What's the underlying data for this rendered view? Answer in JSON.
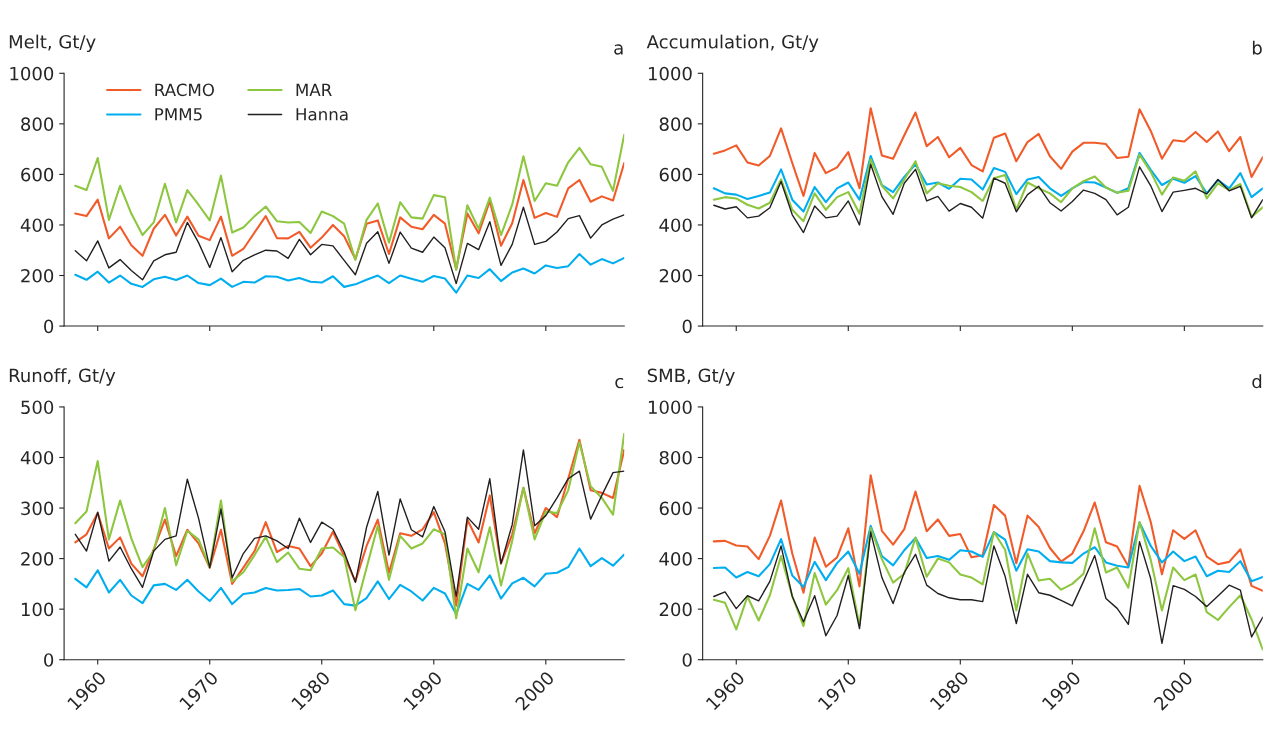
{
  "chart_data": [
    {
      "type": "line",
      "title": "Melt, Gt/y",
      "annotations": [
        "a"
      ],
      "legend": "top left",
      "tick_labels": "y",
      "grid": false,
      "x": [
        1958,
        1959,
        1960,
        1961,
        1962,
        1963,
        1964,
        1965,
        1966,
        1967,
        1968,
        1969,
        1970,
        1971,
        1972,
        1973,
        1974,
        1975,
        1976,
        1977,
        1978,
        1979,
        1980,
        1981,
        1982,
        1983,
        1984,
        1985,
        1986,
        1987,
        1988,
        1989,
        1990,
        1991,
        1992,
        1993,
        1994,
        1995,
        1996,
        1997,
        1998,
        1999,
        2000,
        2001,
        2002,
        2003,
        2004,
        2005,
        2006,
        2007
      ],
      "xlim": [
        1957,
        2007
      ],
      "xticks": [
        1960,
        1970,
        1980,
        1990,
        2000
      ],
      "ylim": [
        0,
        1000
      ],
      "yticks": [
        0,
        200,
        400,
        600,
        800,
        1000
      ],
      "series": [
        {
          "name": "RACMO",
          "color": "#f15a29",
          "values": [
            445,
            435,
            500,
            347,
            393,
            320,
            278,
            385,
            440,
            358,
            433,
            357,
            340,
            433,
            278,
            305,
            370,
            435,
            348,
            347,
            373,
            310,
            350,
            400,
            355,
            265,
            405,
            418,
            285,
            430,
            393,
            383,
            440,
            405,
            225,
            445,
            367,
            495,
            318,
            407,
            578,
            428,
            447,
            432,
            545,
            578,
            492,
            513,
            497,
            645
          ]
        },
        {
          "name": "PMM5",
          "color": "#00aeef",
          "values": [
            203,
            183,
            215,
            172,
            200,
            167,
            155,
            185,
            195,
            182,
            200,
            170,
            162,
            188,
            155,
            175,
            172,
            197,
            195,
            180,
            190,
            175,
            172,
            197,
            155,
            165,
            183,
            200,
            170,
            200,
            187,
            175,
            198,
            188,
            132,
            200,
            190,
            225,
            178,
            212,
            228,
            208,
            240,
            230,
            237,
            285,
            243,
            265,
            248,
            270
          ]
        },
        {
          "name": "MAR",
          "color": "#8dc63f",
          "values": [
            555,
            538,
            665,
            420,
            555,
            445,
            360,
            410,
            563,
            410,
            538,
            480,
            418,
            595,
            370,
            390,
            435,
            473,
            415,
            410,
            412,
            368,
            453,
            435,
            405,
            262,
            420,
            485,
            330,
            490,
            430,
            425,
            518,
            510,
            222,
            478,
            385,
            508,
            360,
            480,
            672,
            495,
            565,
            555,
            648,
            705,
            640,
            630,
            535,
            757
          ]
        },
        {
          "name": "Hanna",
          "color": "#231f20",
          "values": [
            298,
            258,
            337,
            230,
            263,
            220,
            183,
            258,
            282,
            292,
            410,
            330,
            232,
            350,
            215,
            260,
            282,
            300,
            297,
            268,
            343,
            282,
            323,
            317,
            260,
            203,
            328,
            373,
            248,
            372,
            308,
            292,
            352,
            310,
            168,
            327,
            302,
            413,
            240,
            323,
            470,
            323,
            335,
            372,
            425,
            437,
            348,
            400,
            423,
            440
          ]
        }
      ]
    },
    {
      "type": "line",
      "title": "Accumulation, Gt/y",
      "annotations": [
        "b"
      ],
      "tick_labels": "y",
      "grid": false,
      "x": [
        1958,
        1959,
        1960,
        1961,
        1962,
        1963,
        1964,
        1965,
        1966,
        1967,
        1968,
        1969,
        1970,
        1971,
        1972,
        1973,
        1974,
        1975,
        1976,
        1977,
        1978,
        1979,
        1980,
        1981,
        1982,
        1983,
        1984,
        1985,
        1986,
        1987,
        1988,
        1989,
        1990,
        1991,
        1992,
        1993,
        1994,
        1995,
        1996,
        1997,
        1998,
        1999,
        2000,
        2001,
        2002,
        2003,
        2004,
        2005,
        2006,
        2007
      ],
      "xlim": [
        1957,
        2007
      ],
      "xticks": [
        1960,
        1970,
        1980,
        1990,
        2000
      ],
      "ylim": [
        0,
        1000
      ],
      "yticks": [
        0,
        200,
        400,
        600,
        800,
        1000
      ],
      "series": [
        {
          "color": "#f15a29",
          "values": [
            682,
            695,
            715,
            647,
            635,
            673,
            782,
            645,
            515,
            685,
            605,
            628,
            688,
            545,
            862,
            675,
            662,
            755,
            845,
            712,
            748,
            668,
            705,
            637,
            612,
            745,
            762,
            652,
            728,
            760,
            672,
            622,
            690,
            725,
            725,
            720,
            665,
            670,
            858,
            772,
            662,
            735,
            730,
            768,
            728,
            770,
            692,
            748,
            590,
            668
          ]
        },
        {
          "color": "#00aeef",
          "values": [
            545,
            525,
            520,
            503,
            515,
            528,
            620,
            500,
            453,
            550,
            490,
            545,
            568,
            500,
            673,
            558,
            530,
            590,
            640,
            560,
            568,
            543,
            583,
            580,
            540,
            625,
            610,
            522,
            580,
            590,
            545,
            515,
            545,
            570,
            568,
            548,
            527,
            545,
            685,
            618,
            558,
            583,
            567,
            593,
            525,
            578,
            545,
            605,
            510,
            545
          ]
        },
        {
          "color": "#8dc63f",
          "values": [
            500,
            510,
            505,
            480,
            465,
            488,
            580,
            460,
            415,
            525,
            460,
            510,
            530,
            445,
            660,
            555,
            505,
            580,
            652,
            525,
            565,
            555,
            550,
            530,
            495,
            585,
            598,
            460,
            568,
            545,
            525,
            490,
            545,
            573,
            592,
            548,
            528,
            535,
            678,
            610,
            520,
            588,
            575,
            612,
            505,
            565,
            538,
            562,
            432,
            470
          ]
        },
        {
          "color": "#231f20",
          "values": [
            478,
            463,
            472,
            428,
            435,
            468,
            572,
            440,
            370,
            475,
            428,
            435,
            495,
            400,
            640,
            512,
            442,
            565,
            620,
            495,
            513,
            455,
            485,
            470,
            427,
            585,
            565,
            452,
            520,
            553,
            488,
            455,
            493,
            538,
            525,
            500,
            440,
            470,
            630,
            555,
            453,
            530,
            537,
            545,
            523,
            580,
            535,
            553,
            428,
            500
          ]
        }
      ]
    },
    {
      "type": "line",
      "title": "Runoff, Gt/y",
      "annotations": [
        "c"
      ],
      "grid": false,
      "x": [
        1958,
        1959,
        1960,
        1961,
        1962,
        1963,
        1964,
        1965,
        1966,
        1967,
        1968,
        1969,
        1970,
        1971,
        1972,
        1973,
        1974,
        1975,
        1976,
        1977,
        1978,
        1979,
        1980,
        1981,
        1982,
        1983,
        1984,
        1985,
        1986,
        1987,
        1988,
        1989,
        1990,
        1991,
        1992,
        1993,
        1994,
        1995,
        1996,
        1997,
        1998,
        1999,
        2000,
        2001,
        2002,
        2003,
        2004,
        2005,
        2006,
        2007
      ],
      "xlim": [
        1957,
        2007
      ],
      "xticks": [
        1960,
        1970,
        1980,
        1990,
        2000
      ],
      "ylim": [
        0,
        500
      ],
      "yticks": [
        0,
        100,
        200,
        300,
        400,
        500
      ],
      "series": [
        {
          "color": "#f15a29",
          "values": [
            232,
            248,
            290,
            220,
            242,
            190,
            165,
            218,
            277,
            205,
            257,
            230,
            182,
            257,
            150,
            182,
            215,
            272,
            213,
            225,
            220,
            185,
            210,
            253,
            205,
            155,
            225,
            277,
            172,
            250,
            245,
            258,
            292,
            230,
            107,
            277,
            232,
            325,
            190,
            248,
            340,
            250,
            300,
            282,
            358,
            435,
            335,
            330,
            320,
            415
          ]
        },
        {
          "color": "#00aeef",
          "values": [
            160,
            143,
            177,
            133,
            158,
            127,
            112,
            147,
            150,
            138,
            158,
            135,
            116,
            142,
            110,
            130,
            133,
            142,
            137,
            138,
            140,
            125,
            127,
            137,
            110,
            107,
            122,
            155,
            120,
            148,
            135,
            117,
            142,
            131,
            90,
            150,
            138,
            167,
            121,
            151,
            162,
            145,
            170,
            172,
            183,
            220,
            185,
            201,
            186,
            208
          ]
        },
        {
          "color": "#8dc63f",
          "values": [
            270,
            293,
            393,
            238,
            315,
            240,
            183,
            215,
            300,
            187,
            255,
            238,
            183,
            315,
            155,
            173,
            207,
            243,
            193,
            212,
            180,
            177,
            220,
            222,
            203,
            98,
            182,
            265,
            158,
            245,
            220,
            230,
            258,
            248,
            82,
            220,
            173,
            262,
            147,
            235,
            340,
            238,
            293,
            290,
            335,
            430,
            343,
            320,
            287,
            447
          ]
        },
        {
          "color": "#231f20",
          "values": [
            248,
            215,
            292,
            195,
            223,
            180,
            143,
            215,
            238,
            245,
            357,
            280,
            182,
            298,
            162,
            210,
            240,
            245,
            235,
            220,
            280,
            232,
            272,
            258,
            213,
            153,
            262,
            333,
            207,
            318,
            257,
            243,
            303,
            253,
            125,
            282,
            258,
            358,
            190,
            267,
            415,
            265,
            285,
            320,
            358,
            373,
            278,
            325,
            370,
            373
          ]
        }
      ]
    },
    {
      "type": "line",
      "title": "SMB, Gt/y",
      "annotations": [
        "d"
      ],
      "grid": false,
      "x": [
        1958,
        1959,
        1960,
        1961,
        1962,
        1963,
        1964,
        1965,
        1966,
        1967,
        1968,
        1969,
        1970,
        1971,
        1972,
        1973,
        1974,
        1975,
        1976,
        1977,
        1978,
        1979,
        1980,
        1981,
        1982,
        1983,
        1984,
        1985,
        1986,
        1987,
        1988,
        1989,
        1990,
        1991,
        1992,
        1993,
        1994,
        1995,
        1996,
        1997,
        1998,
        1999,
        2000,
        2001,
        2002,
        2003,
        2004,
        2005,
        2006,
        2007
      ],
      "xlim": [
        1957,
        2007
      ],
      "xticks": [
        1960,
        1970,
        1980,
        1990,
        2000
      ],
      "ylim": [
        0,
        1000
      ],
      "yticks": [
        0,
        200,
        400,
        600,
        800,
        1000
      ],
      "series": [
        {
          "color": "#f15a29",
          "values": [
            468,
            470,
            452,
            448,
            398,
            490,
            630,
            420,
            265,
            483,
            368,
            405,
            520,
            290,
            730,
            510,
            455,
            517,
            665,
            508,
            555,
            490,
            497,
            405,
            413,
            612,
            570,
            382,
            570,
            525,
            442,
            388,
            420,
            508,
            622,
            465,
            448,
            370,
            688,
            545,
            338,
            512,
            478,
            512,
            408,
            378,
            387,
            437,
            292,
            273
          ]
        },
        {
          "color": "#00aeef",
          "values": [
            363,
            365,
            325,
            347,
            330,
            378,
            477,
            333,
            288,
            387,
            315,
            382,
            428,
            340,
            530,
            410,
            373,
            433,
            482,
            402,
            410,
            395,
            433,
            428,
            407,
            505,
            475,
            352,
            437,
            428,
            390,
            385,
            383,
            420,
            445,
            385,
            372,
            365,
            543,
            450,
            385,
            428,
            390,
            408,
            330,
            352,
            347,
            390,
            310,
            327
          ]
        },
        {
          "color": "#8dc63f",
          "values": [
            237,
            225,
            120,
            250,
            155,
            255,
            410,
            252,
            133,
            343,
            218,
            275,
            362,
            135,
            522,
            398,
            305,
            340,
            483,
            328,
            400,
            385,
            337,
            325,
            298,
            505,
            435,
            195,
            420,
            313,
            320,
            277,
            300,
            340,
            520,
            345,
            365,
            285,
            545,
            395,
            195,
            365,
            315,
            337,
            188,
            157,
            208,
            255,
            160,
            40
          ]
        },
        {
          "color": "#231f20",
          "values": [
            250,
            268,
            202,
            253,
            233,
            310,
            450,
            250,
            150,
            253,
            95,
            175,
            333,
            123,
            505,
            325,
            222,
            345,
            417,
            295,
            262,
            245,
            237,
            237,
            230,
            450,
            330,
            143,
            338,
            265,
            255,
            235,
            213,
            310,
            412,
            242,
            203,
            140,
            467,
            320,
            65,
            293,
            278,
            250,
            210,
            252,
            295,
            275,
            90,
            168
          ]
        }
      ]
    }
  ]
}
